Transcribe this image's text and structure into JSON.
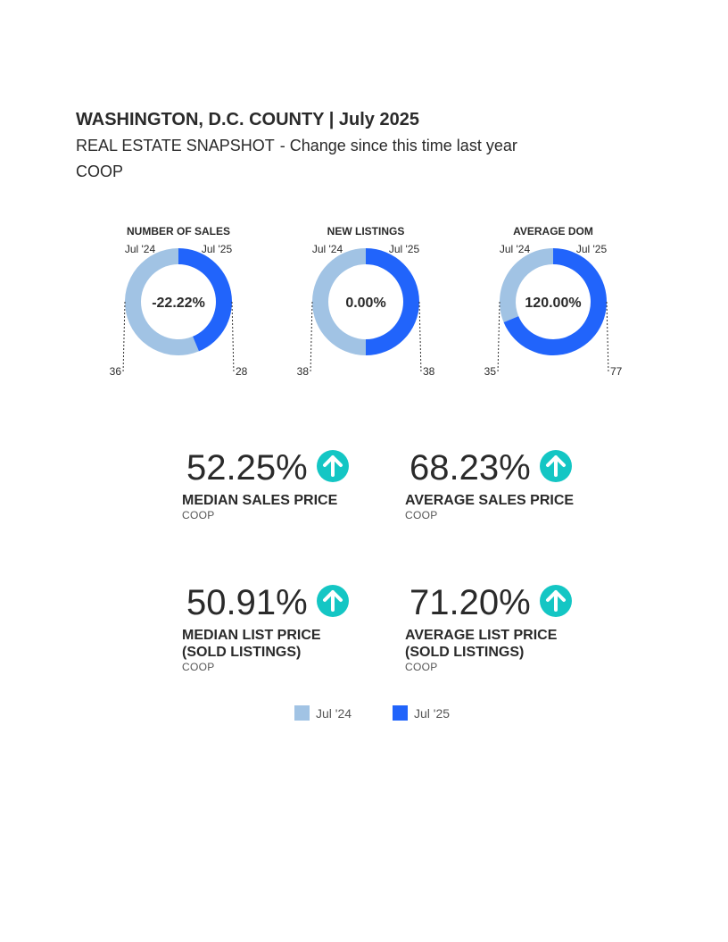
{
  "header": {
    "title": "WASHINGTON, D.C. COUNTY | July 2025",
    "subtitle_a": "REAL ESTATE SNAPSHOT",
    "subtitle_b": "- Change since this time last year",
    "type": "COOP"
  },
  "colors": {
    "prior": "#a1c3e4",
    "current": "#2164fb",
    "up_arrow": "#14c6c4"
  },
  "chart_data": [
    {
      "type": "pie",
      "title": "NUMBER OF SALES",
      "categories": [
        "Jul '24",
        "Jul '25"
      ],
      "values": [
        36,
        28
      ],
      "center_label": "-22.22%"
    },
    {
      "type": "pie",
      "title": "NEW LISTINGS",
      "categories": [
        "Jul '24",
        "Jul '25"
      ],
      "values": [
        38,
        38
      ],
      "center_label": "0.00%"
    },
    {
      "type": "pie",
      "title": "AVERAGE DOM",
      "categories": [
        "Jul '24",
        "Jul '25"
      ],
      "values": [
        35,
        77
      ],
      "center_label": "120.00%"
    }
  ],
  "metrics": [
    {
      "pct": "52.25%",
      "label1": "MEDIAN SALES PRICE",
      "label2": "",
      "sub": "COOP",
      "direction": "up"
    },
    {
      "pct": "68.23%",
      "label1": "AVERAGE SALES PRICE",
      "label2": "",
      "sub": "COOP",
      "direction": "up"
    },
    {
      "pct": "50.91%",
      "label1": "MEDIAN LIST PRICE",
      "label2": "(SOLD LISTINGS)",
      "sub": "COOP",
      "direction": "up"
    },
    {
      "pct": "71.20%",
      "label1": "AVERAGE LIST PRICE",
      "label2": "(SOLD LISTINGS)",
      "sub": "COOP",
      "direction": "up"
    }
  ],
  "legend": [
    {
      "label": "Jul '24",
      "color": "#a1c3e4"
    },
    {
      "label": "Jul '25",
      "color": "#2164fb"
    }
  ]
}
